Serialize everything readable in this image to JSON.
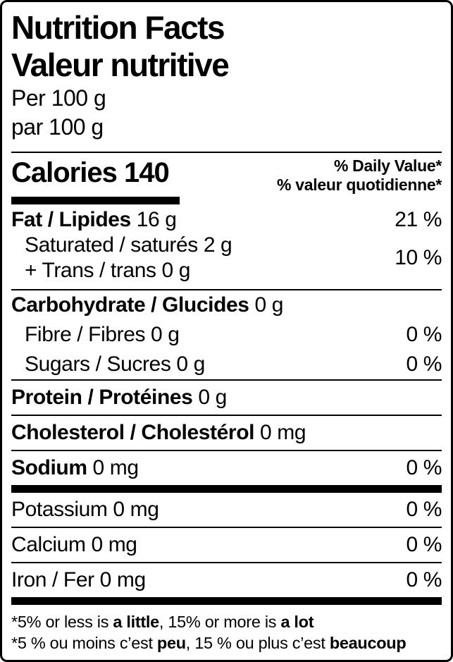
{
  "colors": {
    "text": "#000000",
    "background": "#ffffff",
    "rule": "#000000"
  },
  "header": {
    "title_en": "Nutrition Facts",
    "title_fr": "Valeur nutritive",
    "serving_en": "Per 100 g",
    "serving_fr": "par 100 g"
  },
  "calories": {
    "word": "Calories",
    "value": "140",
    "dv_header_en": "% Daily Value*",
    "dv_header_fr": "% valeur quotidienne*"
  },
  "nutrients": {
    "fat": {
      "name": "Fat / Lipides",
      "amount": "16 g",
      "dv": "21 %"
    },
    "saturated_trans": {
      "line1_name": "Saturated / saturés",
      "line1_amount": "2 g",
      "line2_name": "+ Trans / trans",
      "line2_amount": "0 g",
      "dv": "10 %"
    },
    "carbohydrate": {
      "name": "Carbohydrate / Glucides",
      "amount": "0 g"
    },
    "fibre": {
      "name": "Fibre / Fibres",
      "amount": "0 g",
      "dv": "0 %"
    },
    "sugars": {
      "name": "Sugars / Sucres",
      "amount": "0 g",
      "dv": "0 %"
    },
    "protein": {
      "name": "Protein / Protéines",
      "amount": "0 g"
    },
    "cholesterol": {
      "name": "Cholesterol / Cholestérol",
      "amount": "0 mg"
    },
    "sodium": {
      "name": "Sodium",
      "amount": "0 mg",
      "dv": "0 %"
    },
    "potassium": {
      "name": "Potassium",
      "amount": "0 mg",
      "dv": "0 %"
    },
    "calcium": {
      "name": "Calcium",
      "amount": "0 mg",
      "dv": "0 %"
    },
    "iron": {
      "name": "Iron / Fer",
      "amount": "0 mg",
      "dv": "0 %"
    }
  },
  "footnote": {
    "en": [
      "*5% or less is ",
      "a little",
      ", 15% or more is ",
      "a lot"
    ],
    "fr": [
      "*5 % ou moins c’est ",
      "peu",
      ", 15 % ou plus c’est ",
      "beaucoup"
    ]
  }
}
